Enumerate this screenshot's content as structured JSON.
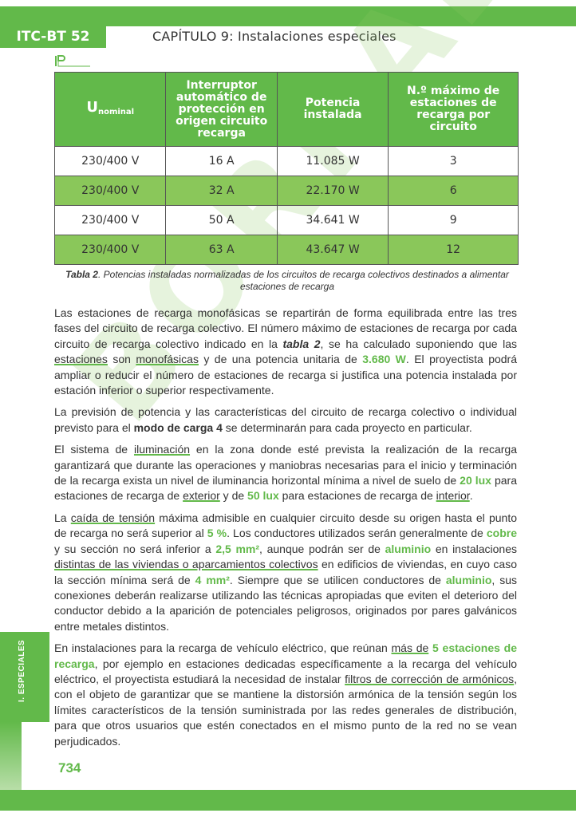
{
  "header": {
    "code": "ITC-BT 52",
    "chapter": "CAPÍTULO 9: Instalaciones especiales"
  },
  "watermark": "BORRADOR",
  "logo_text": "Pcmadrid",
  "table": {
    "headers": [
      {
        "main": "U",
        "sub": "nominal"
      },
      {
        "main": "Interruptor automático de protección en origen circuito recarga"
      },
      {
        "main": "Potencia instalada"
      },
      {
        "main": "N.º máximo de estaciones de recarga por circuito"
      }
    ],
    "rows": [
      [
        "230/400 V",
        "16 A",
        "11.085 W",
        "3"
      ],
      [
        "230/400 V",
        "32 A",
        "22.170 W",
        "6"
      ],
      [
        "230/400 V",
        "50 A",
        "34.641 W",
        "9"
      ],
      [
        "230/400 V",
        "63 A",
        "43.647 W",
        "12"
      ]
    ]
  },
  "caption": {
    "label": "Tabla 2",
    "text": ". Potencias instaladas normalizadas de los circuitos de recarga colectivos destinados a alimentar estaciones de recarga"
  },
  "paragraphs": [
    [
      {
        "t": "Las estaciones de recarga monofásicas se repartirán de forma equilibrada entre las tres fases del circuito de recarga colectivo. El número máximo de estaciones de recarga por cada circuito de recarga colectivo indicado en la "
      },
      {
        "t": "tabla 2",
        "s": "bi"
      },
      {
        "t": ", se ha calculado suponiendo que las "
      },
      {
        "t": "estaciones",
        "s": "ul"
      },
      {
        "t": " son "
      },
      {
        "t": "monofásicas",
        "s": "ul"
      },
      {
        "t": " y de una potencia unitaria de "
      },
      {
        "t": "3.680 W",
        "s": "green"
      },
      {
        "t": ". El proyectista podrá ampliar o reducir el número de estaciones de recarga si justifica una potencia instalada por estación inferior o superior respectivamente."
      }
    ],
    [
      {
        "t": "La previsión de potencia y las características del circuito de recarga colectivo o individual previsto para el "
      },
      {
        "t": "modo de carga 4",
        "s": "bold"
      },
      {
        "t": " se determinarán para cada proyecto en particular."
      }
    ],
    [
      {
        "t": "El sistema de "
      },
      {
        "t": "iluminación",
        "s": "ul"
      },
      {
        "t": " en la zona donde esté prevista la realización de la recarga garantizará que durante las operaciones y maniobras necesarias para el inicio y terminación de la recarga exista un nivel de iluminancia horizontal mínima a nivel de suelo de "
      },
      {
        "t": "20 lux",
        "s": "green"
      },
      {
        "t": " para estaciones de recarga de "
      },
      {
        "t": "exterior",
        "s": "ul"
      },
      {
        "t": " y de "
      },
      {
        "t": "50 lux",
        "s": "green"
      },
      {
        "t": " para estaciones de recarga de "
      },
      {
        "t": "interior",
        "s": "ul"
      },
      {
        "t": "."
      }
    ],
    [
      {
        "t": "La "
      },
      {
        "t": "caída de tensión",
        "s": "ul"
      },
      {
        "t": " máxima admisible en cualquier circuito desde su origen hasta el punto de recarga no será superior al "
      },
      {
        "t": "5 %",
        "s": "green"
      },
      {
        "t": ". Los conductores utilizados serán generalmente de "
      },
      {
        "t": "cobre",
        "s": "green"
      },
      {
        "t": " y su sección no será inferior a "
      },
      {
        "t": "2,5 mm²",
        "s": "green"
      },
      {
        "t": ", aunque podrán ser de "
      },
      {
        "t": "aluminio",
        "s": "green"
      },
      {
        "t": " en instalaciones "
      },
      {
        "t": "distintas de las viviendas o aparcamientos colectivos",
        "s": "ul"
      },
      {
        "t": " en edificios de viviendas, en cuyo caso la sección mínima será de "
      },
      {
        "t": "4 mm²",
        "s": "green"
      },
      {
        "t": ". Siempre que se utilicen conductores de "
      },
      {
        "t": "aluminio",
        "s": "green"
      },
      {
        "t": ", sus conexiones deberán realizarse utilizando las técnicas apropiadas que eviten el deterioro del conductor debido a la aparición de potenciales peligrosos, originados por pares galvánicos entre metales distintos."
      }
    ],
    [
      {
        "t": "En instalaciones para la recarga de vehículo eléctrico, que reúnan "
      },
      {
        "t": "más de",
        "s": "ul"
      },
      {
        "t": " "
      },
      {
        "t": "5 estaciones de recarga",
        "s": "green"
      },
      {
        "t": ", por ejemplo en estaciones dedicadas específicamente a la recarga del vehículo eléctrico, el proyectista estudiará la necesidad de instalar "
      },
      {
        "t": "filtros de corrección de armónicos",
        "s": "ul"
      },
      {
        "t": ", con el objeto de garantizar que se mantiene la distorsión armónica de la tensión según los límites característicos de la tensión suministrada por las redes generales de distribución, para que otros usuarios que estén conectados en el mismo punto de la red no se vean perjudicados."
      }
    ]
  ],
  "side_tab": "I. ESPECIALES",
  "page_number": "734",
  "colors": {
    "brand_green": "#62b94a",
    "row_green": "#8ac75a"
  }
}
